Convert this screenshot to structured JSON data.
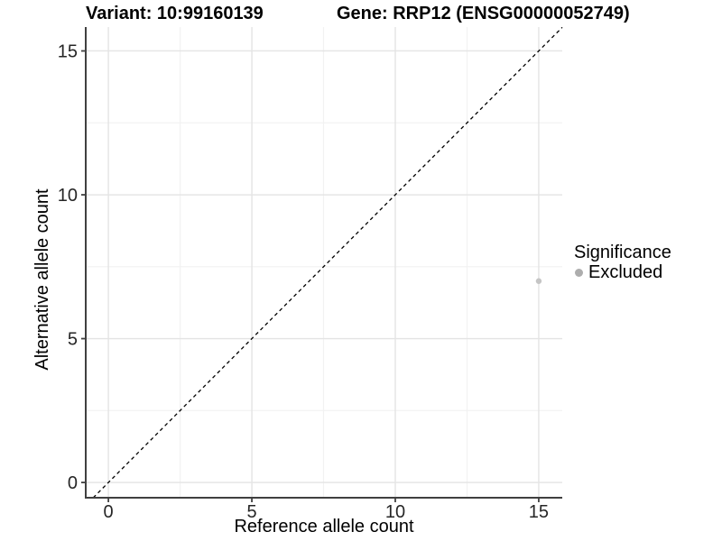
{
  "chart_data": {
    "type": "scatter",
    "titles": {
      "variant": "Variant: 10:99160139",
      "gene": "Gene: RRP12 (ENSG00000052749)"
    },
    "xlabel": "Reference allele count",
    "ylabel": "Alternative allele count",
    "xticks": [
      0,
      5,
      10,
      15
    ],
    "yticks": [
      0,
      5,
      10,
      15
    ],
    "minor_xticks": [
      2.5,
      7.5,
      12.5
    ],
    "minor_yticks": [
      2.5,
      7.5,
      12.5
    ],
    "xlim": [
      -0.79,
      15.82
    ],
    "ylim": [
      -0.53,
      15.83
    ],
    "grid": true,
    "identity_line": {
      "show": true,
      "style": "dashed",
      "color": "#000000"
    },
    "series": [
      {
        "name": "Excluded",
        "color": "#c5c5c5",
        "points": [
          {
            "x": 15,
            "y": 7
          }
        ]
      }
    ],
    "legend": {
      "title": "Significance",
      "position": "right",
      "entries": [
        {
          "label": "Excluded",
          "color": "#adadad"
        }
      ]
    },
    "colors": {
      "grid_major": "#e4e4e4",
      "grid_minor": "#f2f2f2",
      "axis_line": "#404040",
      "tick_text": "#262626",
      "text": "#000000"
    }
  }
}
